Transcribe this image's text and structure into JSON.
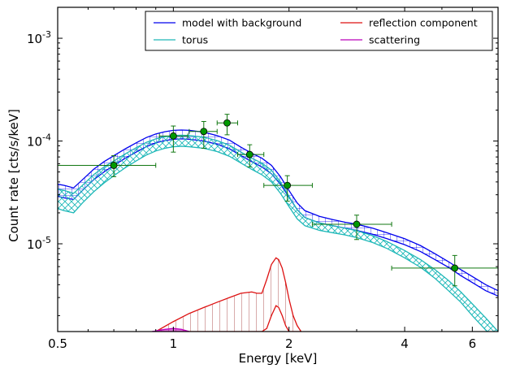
{
  "chart_data": {
    "type": "line",
    "xlabel": "Energy [keV]",
    "ylabel": "Count rate [cts/s/keV]",
    "xscale": "log",
    "yscale": "log",
    "xlim": [
      0.5,
      7.0
    ],
    "ylim": [
      1.4e-06,
      0.002
    ],
    "x_ticks": [
      {
        "value": 0.5,
        "label": "0.5"
      },
      {
        "value": 1,
        "label": "1"
      },
      {
        "value": 2,
        "label": "2"
      },
      {
        "value": 4,
        "label": "4"
      },
      {
        "value": 6,
        "label": "6"
      }
    ],
    "y_ticks": [
      {
        "value": 1e-05,
        "base": "10",
        "exp": "-5"
      },
      {
        "value": 0.0001,
        "base": "10",
        "exp": "-4"
      },
      {
        "value": 0.001,
        "base": "10",
        "exp": "-3"
      }
    ],
    "grid": false,
    "legend_position": "top-right",
    "colors": {
      "model": "#0000ee",
      "torus": "#1fb8b8",
      "reflection": "#dd1111",
      "reflection_hatch": "#a84444",
      "scattering": "#bb00bb",
      "data": "#117711",
      "data_fill": "#009900"
    },
    "series": [
      {
        "name": "model with background",
        "color": "#0000ee",
        "hatch": "grid",
        "x": [
          0.5,
          0.52,
          0.55,
          0.58,
          0.62,
          0.66,
          0.7,
          0.75,
          0.8,
          0.85,
          0.9,
          0.95,
          1.0,
          1.05,
          1.1,
          1.2,
          1.3,
          1.4,
          1.5,
          1.6,
          1.7,
          1.8,
          1.9,
          2.0,
          2.1,
          2.2,
          2.4,
          2.6,
          2.8,
          3.0,
          3.3,
          3.6,
          4.0,
          4.4,
          4.8,
          5.2,
          5.6,
          6.0,
          6.5,
          7.0
        ],
        "upper": [
          3.8e-05,
          3.7e-05,
          3.5e-05,
          4.2e-05,
          5.3e-05,
          6.3e-05,
          7.2e-05,
          8.4e-05,
          9.6e-05,
          0.000108,
          0.000117,
          0.000123,
          0.000127,
          0.000128,
          0.000127,
          0.000122,
          0.000113,
          0.000102,
          8.7e-05,
          7.6e-05,
          6.8e-05,
          5.8e-05,
          4.5e-05,
          3.3e-05,
          2.5e-05,
          2.1e-05,
          1.85e-05,
          1.72e-05,
          1.62e-05,
          1.55e-05,
          1.42e-05,
          1.28e-05,
          1.12e-05,
          9.6e-06,
          8e-06,
          6.7e-06,
          5.6e-06,
          4.8e-06,
          4e-06,
          3.5e-06
        ],
        "lower": [
          2.9e-05,
          2.8e-05,
          2.7e-05,
          3.3e-05,
          4.2e-05,
          5e-05,
          5.8e-05,
          6.8e-05,
          7.8e-05,
          8.8e-05,
          9.6e-05,
          0.000101,
          0.000104,
          0.000105,
          0.000104,
          0.0001,
          9.3e-05,
          8.4e-05,
          7.2e-05,
          6.3e-05,
          5.6e-05,
          4.8e-05,
          3.8e-05,
          2.85e-05,
          2.15e-05,
          1.8e-05,
          1.6e-05,
          1.5e-05,
          1.42e-05,
          1.35e-05,
          1.24e-05,
          1.12e-05,
          9.8e-06,
          8.4e-06,
          7e-06,
          5.9e-06,
          4.9e-06,
          4.2e-06,
          3.5e-06,
          3.1e-06
        ]
      },
      {
        "name": "torus",
        "color": "#1fb8b8",
        "hatch": "cross",
        "x": [
          0.5,
          0.52,
          0.55,
          0.58,
          0.62,
          0.66,
          0.7,
          0.75,
          0.8,
          0.85,
          0.9,
          0.95,
          1.0,
          1.05,
          1.1,
          1.2,
          1.3,
          1.4,
          1.5,
          1.6,
          1.7,
          1.8,
          1.9,
          2.0,
          2.1,
          2.2,
          2.4,
          2.6,
          2.8,
          3.0,
          3.3,
          3.6,
          4.0,
          4.4,
          4.8,
          5.2,
          5.6,
          6.0,
          6.5,
          7.0
        ],
        "upper": [
          3.4e-05,
          3.3e-05,
          3.1e-05,
          3.7e-05,
          4.7e-05,
          5.6e-05,
          6.4e-05,
          7.5e-05,
          8.6e-05,
          9.7e-05,
          0.000105,
          0.00011,
          0.000113,
          0.000114,
          0.000113,
          0.000109,
          0.000101,
          9.1e-05,
          7.8e-05,
          6.8e-05,
          6.1e-05,
          5.2e-05,
          4e-05,
          2.9e-05,
          2.15e-05,
          1.8e-05,
          1.6e-05,
          1.5e-05,
          1.42e-05,
          1.34e-05,
          1.2e-05,
          1.05e-05,
          8.6e-06,
          7e-06,
          5.6e-06,
          4.4e-06,
          3.4e-06,
          2.6e-06,
          1.9e-06,
          1.4e-06
        ],
        "lower": [
          2.2e-05,
          2.1e-05,
          2e-05,
          2.5e-05,
          3.2e-05,
          3.9e-05,
          4.6e-05,
          5.5e-05,
          6.4e-05,
          7.3e-05,
          8e-05,
          8.5e-05,
          8.8e-05,
          8.9e-05,
          8.8e-05,
          8.5e-05,
          7.9e-05,
          7.1e-05,
          6.1e-05,
          5.3e-05,
          4.7e-05,
          4e-05,
          3.1e-05,
          2.3e-05,
          1.75e-05,
          1.5e-05,
          1.35e-05,
          1.28e-05,
          1.22e-05,
          1.15e-05,
          1.03e-05,
          9e-06,
          7.3e-06,
          5.9e-06,
          4.6e-06,
          3.5e-06,
          2.7e-06,
          2e-06,
          1.45e-06,
          1.1e-06
        ]
      },
      {
        "name": "reflection component",
        "color": "#dd1111",
        "hatch": "vertical",
        "x": [
          0.9,
          1.0,
          1.1,
          1.2,
          1.3,
          1.4,
          1.5,
          1.6,
          1.65,
          1.7,
          1.75,
          1.8,
          1.85,
          1.88,
          1.92,
          1.96,
          2.0,
          2.05,
          2.1,
          2.15
        ],
        "upper": [
          1.4e-06,
          1.75e-06,
          2.1e-06,
          2.4e-06,
          2.7e-06,
          3e-06,
          3.3e-06,
          3.4e-06,
          3.3e-06,
          3.3e-06,
          4.5e-06,
          6.3e-06,
          7.3e-06,
          7e-06,
          5.8e-06,
          4.2e-06,
          2.9e-06,
          2e-06,
          1.6e-06,
          1.4e-06
        ],
        "lower": [
          1.4e-06,
          1.4e-06,
          1.4e-06,
          1.4e-06,
          1.4e-06,
          1.4e-06,
          1.4e-06,
          1.4e-06,
          1.4e-06,
          1.4e-06,
          1.5e-06,
          2e-06,
          2.5e-06,
          2.4e-06,
          2e-06,
          1.6e-06,
          1.4e-06,
          1.4e-06,
          1.4e-06,
          1.4e-06
        ]
      },
      {
        "name": "scattering",
        "color": "#bb00bb",
        "hatch": "none",
        "x": [
          0.88,
          0.95,
          1.0,
          1.05,
          1.1
        ],
        "upper": [
          1.4e-06,
          1.47e-06,
          1.5e-06,
          1.47e-06,
          1.4e-06
        ],
        "lower": [
          1.4e-06,
          1.4e-06,
          1.4e-06,
          1.4e-06,
          1.4e-06
        ]
      }
    ],
    "data_points": [
      {
        "x": 0.7,
        "xlo": 0.5,
        "xhi": 0.9,
        "y": 5.8e-05,
        "ylo": 4.5e-05,
        "yhi": 7.2e-05
      },
      {
        "x": 1.0,
        "xlo": 0.92,
        "xhi": 1.09,
        "y": 0.000112,
        "ylo": 7.8e-05,
        "yhi": 0.00014
      },
      {
        "x": 1.2,
        "xlo": 1.1,
        "xhi": 1.3,
        "y": 0.000124,
        "ylo": 8.5e-05,
        "yhi": 0.000155
      },
      {
        "x": 1.38,
        "xlo": 1.3,
        "xhi": 1.47,
        "y": 0.00015,
        "ylo": 0.000115,
        "yhi": 0.000182
      },
      {
        "x": 1.58,
        "xlo": 1.47,
        "xhi": 1.72,
        "y": 7.4e-05,
        "ylo": 5.6e-05,
        "yhi": 9.2e-05
      },
      {
        "x": 1.98,
        "xlo": 1.72,
        "xhi": 2.3,
        "y": 3.7e-05,
        "ylo": 2.6e-05,
        "yhi": 4.6e-05
      },
      {
        "x": 3.0,
        "xlo": 2.3,
        "xhi": 3.7,
        "y": 1.55e-05,
        "ylo": 1.1e-05,
        "yhi": 1.9e-05
      },
      {
        "x": 5.4,
        "xlo": 3.7,
        "xhi": 7.0,
        "y": 5.8e-06,
        "ylo": 3.9e-06,
        "yhi": 7.7e-06
      }
    ]
  }
}
